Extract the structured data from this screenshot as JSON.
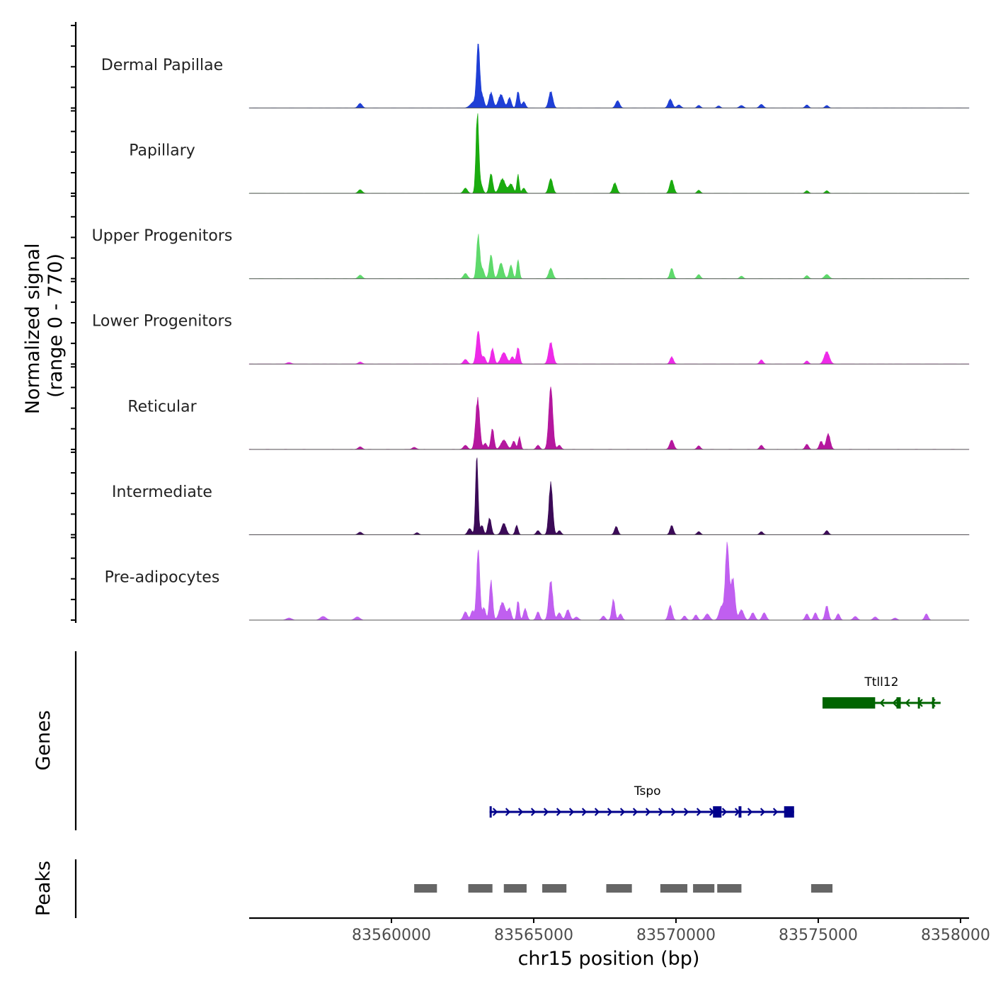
{
  "chart_data": {
    "type": "area",
    "title": "",
    "ylabel": "Normalized signal\n(range 0 - 770)",
    "ylabel_lines": [
      "Normalized signal",
      "(range 0 - 770)"
    ],
    "xlabel": "chr15 position (bp)",
    "xlim": [
      83555000,
      83580300
    ],
    "ylim": [
      0,
      770
    ],
    "x_ticks": [
      83560000,
      83565000,
      83570000,
      83575000,
      83580000
    ],
    "x_tick_labels": [
      "83560000",
      "83565000",
      "83570000",
      "83575000",
      "83580000"
    ],
    "tracks": [
      {
        "name": "Dermal Papillae",
        "color": "#1f3fd6",
        "peaks": [
          [
            83558900,
            45,
            70
          ],
          [
            83562900,
            60,
            120
          ],
          [
            83563050,
            600,
            55
          ],
          [
            83563200,
            110,
            60
          ],
          [
            83563500,
            150,
            70
          ],
          [
            83563850,
            130,
            90
          ],
          [
            83564150,
            100,
            60
          ],
          [
            83564450,
            160,
            50
          ],
          [
            83564650,
            60,
            60
          ],
          [
            83565600,
            160,
            70
          ],
          [
            83567950,
            70,
            70
          ],
          [
            83569800,
            85,
            70
          ],
          [
            83570100,
            30,
            70
          ],
          [
            83570800,
            25,
            60
          ],
          [
            83571500,
            20,
            60
          ],
          [
            83572300,
            25,
            70
          ],
          [
            83573000,
            35,
            70
          ],
          [
            83574600,
            30,
            60
          ],
          [
            83575300,
            25,
            60
          ]
        ]
      },
      {
        "name": "Papillary",
        "color": "#1aab0f",
        "peaks": [
          [
            83558900,
            35,
            70
          ],
          [
            83562600,
            50,
            70
          ],
          [
            83563020,
            770,
            50
          ],
          [
            83563150,
            80,
            60
          ],
          [
            83563500,
            190,
            60
          ],
          [
            83563900,
            140,
            100
          ],
          [
            83564200,
            90,
            80
          ],
          [
            83564450,
            180,
            40
          ],
          [
            83564650,
            50,
            60
          ],
          [
            83565600,
            140,
            70
          ],
          [
            83567850,
            100,
            70
          ],
          [
            83569850,
            130,
            70
          ],
          [
            83570800,
            30,
            60
          ],
          [
            83574600,
            25,
            60
          ],
          [
            83575300,
            25,
            60
          ]
        ]
      },
      {
        "name": "Upper Progenitors",
        "color": "#5ed96b",
        "peaks": [
          [
            83558900,
            35,
            70
          ],
          [
            83562600,
            50,
            70
          ],
          [
            83563050,
            420,
            55
          ],
          [
            83563200,
            90,
            60
          ],
          [
            83563500,
            230,
            60
          ],
          [
            83563850,
            150,
            80
          ],
          [
            83564200,
            130,
            60
          ],
          [
            83564450,
            180,
            45
          ],
          [
            83565600,
            100,
            70
          ],
          [
            83569850,
            100,
            60
          ],
          [
            83570800,
            40,
            60
          ],
          [
            83572300,
            25,
            60
          ],
          [
            83574600,
            30,
            60
          ],
          [
            83575300,
            40,
            80
          ]
        ]
      },
      {
        "name": "Lower Progenitors",
        "color": "#ee2ae8",
        "peaks": [
          [
            83556400,
            15,
            80
          ],
          [
            83558900,
            20,
            70
          ],
          [
            83562600,
            45,
            70
          ],
          [
            83563050,
            320,
            65
          ],
          [
            83563250,
            70,
            60
          ],
          [
            83563550,
            150,
            60
          ],
          [
            83563950,
            110,
            100
          ],
          [
            83564250,
            70,
            60
          ],
          [
            83564450,
            160,
            55
          ],
          [
            83565600,
            210,
            75
          ],
          [
            83569850,
            70,
            60
          ],
          [
            83573000,
            40,
            60
          ],
          [
            83574600,
            30,
            60
          ],
          [
            83575300,
            120,
            90
          ]
        ]
      },
      {
        "name": "Reticular",
        "color": "#b5179e",
        "peaks": [
          [
            83558900,
            25,
            70
          ],
          [
            83560800,
            20,
            70
          ],
          [
            83562600,
            40,
            70
          ],
          [
            83563030,
            490,
            70
          ],
          [
            83563300,
            60,
            60
          ],
          [
            83563550,
            200,
            55
          ],
          [
            83563950,
            90,
            100
          ],
          [
            83564300,
            80,
            60
          ],
          [
            83564500,
            120,
            45
          ],
          [
            83565150,
            40,
            60
          ],
          [
            83565600,
            600,
            70
          ],
          [
            83565900,
            40,
            60
          ],
          [
            83569850,
            90,
            70
          ],
          [
            83570800,
            35,
            60
          ],
          [
            83573000,
            40,
            60
          ],
          [
            83574600,
            50,
            60
          ],
          [
            83575100,
            80,
            60
          ],
          [
            83575350,
            150,
            70
          ]
        ]
      },
      {
        "name": "Intermediate",
        "color": "#3b0a57",
        "peaks": [
          [
            83558900,
            25,
            70
          ],
          [
            83560900,
            20,
            60
          ],
          [
            83562750,
            60,
            70
          ],
          [
            83563000,
            750,
            45
          ],
          [
            83563180,
            90,
            55
          ],
          [
            83563450,
            160,
            60
          ],
          [
            83563950,
            110,
            80
          ],
          [
            83564400,
            90,
            50
          ],
          [
            83565150,
            40,
            60
          ],
          [
            83565600,
            500,
            65
          ],
          [
            83565900,
            40,
            60
          ],
          [
            83567900,
            80,
            60
          ],
          [
            83569850,
            90,
            60
          ],
          [
            83570800,
            30,
            60
          ],
          [
            83573000,
            30,
            60
          ],
          [
            83575300,
            40,
            60
          ]
        ]
      },
      {
        "name": "Pre-adipocytes",
        "color": "#c05ff0",
        "peaks": [
          [
            83556400,
            20,
            90
          ],
          [
            83557600,
            35,
            100
          ],
          [
            83558800,
            30,
            90
          ],
          [
            83562600,
            80,
            70
          ],
          [
            83562850,
            90,
            60
          ],
          [
            83563050,
            680,
            55
          ],
          [
            83563250,
            120,
            60
          ],
          [
            83563500,
            380,
            55
          ],
          [
            83563900,
            170,
            100
          ],
          [
            83564150,
            110,
            60
          ],
          [
            83564450,
            190,
            45
          ],
          [
            83564700,
            110,
            60
          ],
          [
            83565150,
            80,
            60
          ],
          [
            83565600,
            380,
            70
          ],
          [
            83565900,
            70,
            70
          ],
          [
            83566200,
            100,
            70
          ],
          [
            83566500,
            30,
            70
          ],
          [
            83567450,
            40,
            60
          ],
          [
            83567800,
            200,
            55
          ],
          [
            83568050,
            60,
            60
          ],
          [
            83569800,
            140,
            65
          ],
          [
            83570300,
            40,
            60
          ],
          [
            83570700,
            50,
            60
          ],
          [
            83571100,
            60,
            80
          ],
          [
            83571600,
            130,
            80
          ],
          [
            83571800,
            730,
            65
          ],
          [
            83572000,
            400,
            70
          ],
          [
            83572300,
            100,
            80
          ],
          [
            83572700,
            70,
            70
          ],
          [
            83573100,
            70,
            70
          ],
          [
            83574600,
            60,
            60
          ],
          [
            83574900,
            70,
            60
          ],
          [
            83575300,
            140,
            60
          ],
          [
            83575700,
            60,
            60
          ],
          [
            83576300,
            35,
            70
          ],
          [
            83577000,
            30,
            70
          ],
          [
            83577700,
            20,
            70
          ],
          [
            83578800,
            60,
            60
          ]
        ]
      }
    ],
    "genes": [
      {
        "name": "Ttll12",
        "start": 83575150,
        "end": 83579300,
        "strand": "-",
        "color": "#006400",
        "exons": [
          [
            83575150,
            83577000,
            "utr-block"
          ],
          [
            83577750,
            83577900,
            "exon"
          ],
          [
            83578500,
            83578550,
            "exon"
          ],
          [
            83579000,
            83579050,
            "exon"
          ]
        ]
      },
      {
        "name": "Tspo",
        "start": 83563450,
        "end": 83574150,
        "strand": "+",
        "color": "#00008b",
        "exons": [
          [
            83563450,
            83563500,
            "exon"
          ],
          [
            83571300,
            83571600,
            "exon"
          ],
          [
            83572200,
            83572300,
            "exon"
          ],
          [
            83573800,
            83574150,
            "utr-block"
          ]
        ]
      }
    ],
    "peaks_track": [
      [
        83560800,
        83561600
      ],
      [
        83562700,
        83563550
      ],
      [
        83563950,
        83564750
      ],
      [
        83565300,
        83566150
      ],
      [
        83567550,
        83568450
      ],
      [
        83569450,
        83570400
      ],
      [
        83570600,
        83571350
      ],
      [
        83571450,
        83572300
      ],
      [
        83574750,
        83575500
      ]
    ],
    "panel_titles": [
      "Genes",
      "Peaks"
    ]
  }
}
